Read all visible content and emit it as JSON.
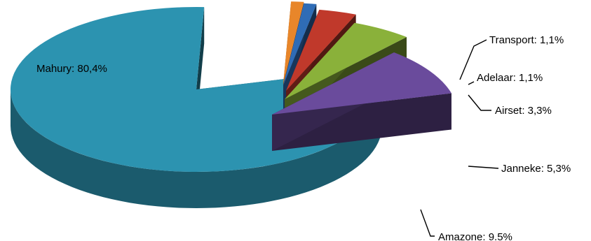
{
  "chart_data": {
    "type": "pie",
    "variant": "3d-exploded",
    "title": "",
    "slices": [
      {
        "name": "Mahury",
        "value": 80.4,
        "label": "Mahury: 80,4%",
        "color": "#2C93B0"
      },
      {
        "name": "Transport",
        "value": 1.1,
        "label": "Transport: 1,1%",
        "color": "#E8862A"
      },
      {
        "name": "Adelaar",
        "value": 1.1,
        "label": "Adelaar: 1,1%",
        "color": "#2F6CB6"
      },
      {
        "name": "Airset",
        "value": 3.3,
        "label": "Airset: 3,3%",
        "color": "#C0392B"
      },
      {
        "name": "Janneke",
        "value": 5.3,
        "label": "Janneke: 5,3%",
        "color": "#8AB13A"
      },
      {
        "name": "Amazone",
        "value": 9.5,
        "label": "Amazone: 9.5%",
        "color": "#6A4B9C"
      }
    ],
    "legend": "none",
    "data_labels": "outside-with-leader-lines"
  }
}
